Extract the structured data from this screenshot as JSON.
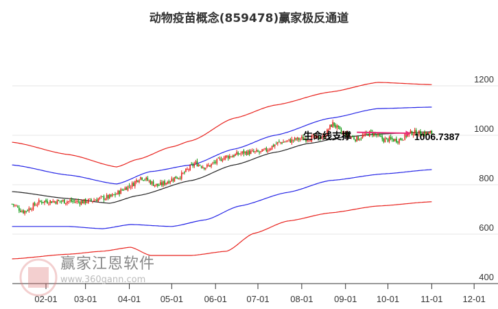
{
  "chart_data": {
    "type": "line",
    "title": "动物疫苗概念(859478)赢家极反通道",
    "x_unit": "day-of-year",
    "xlim": [
      8,
      340
    ],
    "ylim": [
      400,
      1260
    ],
    "yticks": [
      400,
      600,
      800,
      1000,
      1200
    ],
    "xticks": [
      {
        "day": 32,
        "label": "02-01"
      },
      {
        "day": 60,
        "label": "03-01"
      },
      {
        "day": 91,
        "label": "04-01"
      },
      {
        "day": 121,
        "label": "05-01"
      },
      {
        "day": 152,
        "label": "06-01"
      },
      {
        "day": 182,
        "label": "07-01"
      },
      {
        "day": 213,
        "label": "08-01"
      },
      {
        "day": 244,
        "label": "09-01"
      },
      {
        "day": 274,
        "label": "10-01"
      },
      {
        "day": 305,
        "label": "11-01"
      },
      {
        "day": 335,
        "label": "12-01"
      }
    ],
    "series": [
      {
        "name": "red-upper",
        "color": "#e8211c",
        "points": [
          [
            8,
            972
          ],
          [
            48,
            922
          ],
          [
            82,
            872
          ],
          [
            97,
            903
          ],
          [
            121,
            953
          ],
          [
            135,
            978
          ],
          [
            165,
            1069
          ],
          [
            194,
            1122
          ],
          [
            233,
            1175
          ],
          [
            267,
            1214
          ],
          [
            305,
            1205
          ]
        ]
      },
      {
        "name": "blue-upper",
        "color": "#2323e6",
        "points": [
          [
            8,
            880
          ],
          [
            48,
            839
          ],
          [
            82,
            803
          ],
          [
            106,
            853
          ],
          [
            135,
            880
          ],
          [
            165,
            944
          ],
          [
            194,
            1000
          ],
          [
            233,
            1069
          ],
          [
            267,
            1108
          ],
          [
            305,
            1114
          ]
        ]
      },
      {
        "name": "middle",
        "color": "#222222",
        "points": [
          [
            8,
            772
          ],
          [
            48,
            744
          ],
          [
            77,
            725
          ],
          [
            97,
            756
          ],
          [
            135,
            817
          ],
          [
            165,
            880
          ],
          [
            194,
            931
          ],
          [
            218,
            967
          ],
          [
            242,
            992
          ],
          [
            267,
            1005
          ],
          [
            305,
            1014
          ]
        ]
      },
      {
        "name": "blue-lower",
        "color": "#2323e6",
        "points": [
          [
            8,
            631
          ],
          [
            48,
            631
          ],
          [
            72,
            622
          ],
          [
            92,
            639
          ],
          [
            121,
            631
          ],
          [
            145,
            658
          ],
          [
            169,
            714
          ],
          [
            203,
            769
          ],
          [
            233,
            817
          ],
          [
            271,
            844
          ],
          [
            305,
            861
          ]
        ]
      },
      {
        "name": "red-lower",
        "color": "#e8211c",
        "points": [
          [
            8,
            500
          ],
          [
            48,
            519
          ],
          [
            72,
            531
          ],
          [
            92,
            547
          ],
          [
            106,
            514
          ],
          [
            135,
            514
          ],
          [
            160,
            531
          ],
          [
            179,
            603
          ],
          [
            203,
            653
          ],
          [
            233,
            686
          ],
          [
            267,
            714
          ],
          [
            305,
            731
          ]
        ]
      }
    ],
    "price_path": [
      [
        8,
        722
      ],
      [
        16,
        692
      ],
      [
        29,
        733
      ],
      [
        48,
        733
      ],
      [
        58,
        731
      ],
      [
        77,
        750
      ],
      [
        92,
        797
      ],
      [
        99,
        831
      ],
      [
        111,
        797
      ],
      [
        126,
        833
      ],
      [
        138,
        886
      ],
      [
        145,
        872
      ],
      [
        160,
        914
      ],
      [
        174,
        931
      ],
      [
        184,
        931
      ],
      [
        198,
        972
      ],
      [
        213,
        986
      ],
      [
        228,
        992
      ],
      [
        235,
        1047
      ],
      [
        242,
        1006
      ],
      [
        252,
        986
      ],
      [
        262,
        1011
      ],
      [
        271,
        983
      ],
      [
        281,
        981
      ],
      [
        291,
        1011
      ],
      [
        305,
        1006
      ]
    ],
    "annotation": {
      "label": "生命线支撑",
      "value": "1006.7387",
      "arrow_color": "#e8307a"
    }
  },
  "watermark": {
    "brand": "赢家江恩软件",
    "url": "www.360gann.com",
    "seal": "江赢恩家"
  }
}
